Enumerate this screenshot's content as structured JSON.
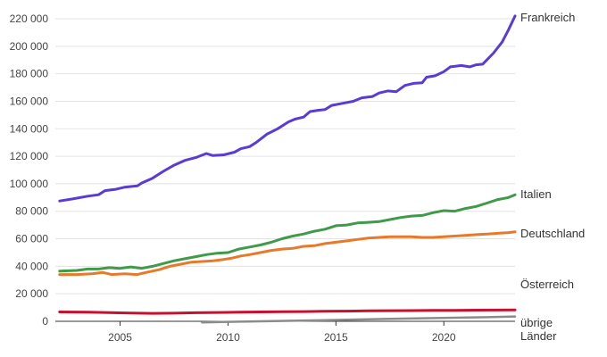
{
  "chart_data": {
    "type": "line",
    "title": "",
    "xlabel": "",
    "ylabel": "",
    "xlim": [
      2002,
      2023.3
    ],
    "ylim": [
      0,
      220000
    ],
    "grid": true,
    "legend": "none",
    "x_ticks": [
      2005,
      2010,
      2015,
      2020
    ],
    "y_ticks": [
      0,
      20000,
      40000,
      60000,
      80000,
      100000,
      120000,
      140000,
      160000,
      180000,
      200000,
      220000
    ],
    "y_tick_labels": [
      "0",
      "20 000",
      "40 000",
      "60 000",
      "80 000",
      "100 000",
      "120 000",
      "140 000",
      "160 000",
      "180 000",
      "200 000",
      "220 000"
    ],
    "series": [
      {
        "name": "Frankreich",
        "color": "#5b3bd6",
        "label_lines": [
          "Frankreich"
        ],
        "points": [
          [
            2002.2,
            87500
          ],
          [
            2002.8,
            89000
          ],
          [
            2003.5,
            91000
          ],
          [
            2004.0,
            92000
          ],
          [
            2004.3,
            95000
          ],
          [
            2004.8,
            96000
          ],
          [
            2005.2,
            97500
          ],
          [
            2005.8,
            98500
          ],
          [
            2006.0,
            100500
          ],
          [
            2006.5,
            104000
          ],
          [
            2007.0,
            109000
          ],
          [
            2007.5,
            113500
          ],
          [
            2008.0,
            117000
          ],
          [
            2008.5,
            119000
          ],
          [
            2009.0,
            122000
          ],
          [
            2009.3,
            120500
          ],
          [
            2009.8,
            121000
          ],
          [
            2010.3,
            123000
          ],
          [
            2010.6,
            125500
          ],
          [
            2011.0,
            127000
          ],
          [
            2011.3,
            130000
          ],
          [
            2011.8,
            136000
          ],
          [
            2012.3,
            140000
          ],
          [
            2012.8,
            145000
          ],
          [
            2013.1,
            147000
          ],
          [
            2013.5,
            148500
          ],
          [
            2013.8,
            152500
          ],
          [
            2014.2,
            153500
          ],
          [
            2014.5,
            154000
          ],
          [
            2014.8,
            157000
          ],
          [
            2015.3,
            158500
          ],
          [
            2015.8,
            160000
          ],
          [
            2016.2,
            162500
          ],
          [
            2016.7,
            163500
          ],
          [
            2017.0,
            166000
          ],
          [
            2017.4,
            167500
          ],
          [
            2017.8,
            167000
          ],
          [
            2018.2,
            171500
          ],
          [
            2018.6,
            173000
          ],
          [
            2019.0,
            173500
          ],
          [
            2019.2,
            177500
          ],
          [
            2019.6,
            178500
          ],
          [
            2020.0,
            181500
          ],
          [
            2020.3,
            185000
          ],
          [
            2020.8,
            186000
          ],
          [
            2021.2,
            185000
          ],
          [
            2021.5,
            186500
          ],
          [
            2021.8,
            187000
          ],
          [
            2022.3,
            195000
          ],
          [
            2022.7,
            203000
          ],
          [
            2023.0,
            212000
          ],
          [
            2023.3,
            222000
          ]
        ]
      },
      {
        "name": "Italien",
        "color": "#3f9a4a",
        "label_lines": [
          "Italien"
        ],
        "points": [
          [
            2002.2,
            36500
          ],
          [
            2003.0,
            37000
          ],
          [
            2003.5,
            38000
          ],
          [
            2004.0,
            38000
          ],
          [
            2004.5,
            39000
          ],
          [
            2005.0,
            38500
          ],
          [
            2005.5,
            39500
          ],
          [
            2006.0,
            38500
          ],
          [
            2006.5,
            40000
          ],
          [
            2007.0,
            42000
          ],
          [
            2007.5,
            44000
          ],
          [
            2008.0,
            45500
          ],
          [
            2008.5,
            47000
          ],
          [
            2009.0,
            48500
          ],
          [
            2009.5,
            49500
          ],
          [
            2010.0,
            50000
          ],
          [
            2010.5,
            52500
          ],
          [
            2011.0,
            54000
          ],
          [
            2011.5,
            55500
          ],
          [
            2012.0,
            57500
          ],
          [
            2012.5,
            60000
          ],
          [
            2013.0,
            62000
          ],
          [
            2013.5,
            63500
          ],
          [
            2014.0,
            65500
          ],
          [
            2014.5,
            67000
          ],
          [
            2015.0,
            69500
          ],
          [
            2015.5,
            70000
          ],
          [
            2016.0,
            71500
          ],
          [
            2016.5,
            72000
          ],
          [
            2017.0,
            72500
          ],
          [
            2017.5,
            74000
          ],
          [
            2018.0,
            75500
          ],
          [
            2018.5,
            76500
          ],
          [
            2019.0,
            77000
          ],
          [
            2019.5,
            79000
          ],
          [
            2020.0,
            80500
          ],
          [
            2020.5,
            80000
          ],
          [
            2021.0,
            82000
          ],
          [
            2021.5,
            83500
          ],
          [
            2022.0,
            86000
          ],
          [
            2022.5,
            88500
          ],
          [
            2023.0,
            90000
          ],
          [
            2023.3,
            92000
          ]
        ]
      },
      {
        "name": "Deutschland",
        "color": "#e8792b",
        "label_lines": [
          "Deutschland"
        ],
        "points": [
          [
            2002.2,
            34000
          ],
          [
            2003.0,
            34000
          ],
          [
            2003.7,
            34500
          ],
          [
            2004.2,
            35500
          ],
          [
            2004.6,
            34000
          ],
          [
            2005.2,
            34500
          ],
          [
            2005.8,
            34000
          ],
          [
            2006.2,
            35500
          ],
          [
            2006.8,
            37500
          ],
          [
            2007.3,
            40000
          ],
          [
            2007.8,
            41500
          ],
          [
            2008.3,
            43000
          ],
          [
            2008.8,
            43500
          ],
          [
            2009.3,
            44000
          ],
          [
            2009.8,
            45000
          ],
          [
            2010.2,
            46000
          ],
          [
            2010.6,
            47500
          ],
          [
            2011.0,
            48500
          ],
          [
            2011.5,
            50000
          ],
          [
            2012.0,
            51500
          ],
          [
            2012.5,
            52500
          ],
          [
            2013.0,
            53000
          ],
          [
            2013.5,
            54500
          ],
          [
            2014.0,
            55000
          ],
          [
            2014.5,
            56500
          ],
          [
            2015.0,
            57500
          ],
          [
            2015.5,
            58500
          ],
          [
            2016.0,
            59500
          ],
          [
            2016.5,
            60500
          ],
          [
            2017.0,
            61000
          ],
          [
            2017.5,
            61500
          ],
          [
            2018.0,
            61500
          ],
          [
            2018.5,
            61500
          ],
          [
            2019.0,
            61000
          ],
          [
            2019.5,
            61000
          ],
          [
            2020.0,
            61500
          ],
          [
            2020.5,
            62000
          ],
          [
            2021.0,
            62500
          ],
          [
            2021.5,
            63000
          ],
          [
            2022.0,
            63500
          ],
          [
            2022.5,
            64000
          ],
          [
            2023.0,
            64500
          ],
          [
            2023.3,
            65000
          ]
        ]
      },
      {
        "name": "Österreich",
        "color": "#c8102e",
        "label_lines": [
          "Österreich"
        ],
        "points": [
          [
            2002.2,
            6800
          ],
          [
            2003.5,
            6600
          ],
          [
            2004.5,
            6300
          ],
          [
            2005.5,
            6000
          ],
          [
            2006.5,
            5800
          ],
          [
            2007.5,
            5900
          ],
          [
            2008.5,
            6200
          ],
          [
            2009.5,
            6400
          ],
          [
            2010.5,
            6600
          ],
          [
            2011.5,
            6800
          ],
          [
            2012.5,
            7000
          ],
          [
            2013.5,
            7100
          ],
          [
            2014.5,
            7300
          ],
          [
            2015.5,
            7400
          ],
          [
            2016.5,
            7600
          ],
          [
            2017.5,
            7700
          ],
          [
            2018.5,
            7800
          ],
          [
            2019.5,
            7900
          ],
          [
            2020.5,
            8000
          ],
          [
            2021.5,
            8100
          ],
          [
            2022.5,
            8200
          ],
          [
            2023.3,
            8300
          ]
        ]
      },
      {
        "name": "übrige Länder",
        "color": "#8c8c8c",
        "label_lines": [
          "übrige",
          "Länder"
        ],
        "points": [
          [
            2008.8,
            -800
          ],
          [
            2010.0,
            -400
          ],
          [
            2011.5,
            0
          ],
          [
            2013.0,
            400
          ],
          [
            2014.5,
            800
          ],
          [
            2016.0,
            1300
          ],
          [
            2017.5,
            1800
          ],
          [
            2019.0,
            2200
          ],
          [
            2020.5,
            2600
          ],
          [
            2022.0,
            3000
          ],
          [
            2023.3,
            3500
          ]
        ]
      }
    ]
  }
}
